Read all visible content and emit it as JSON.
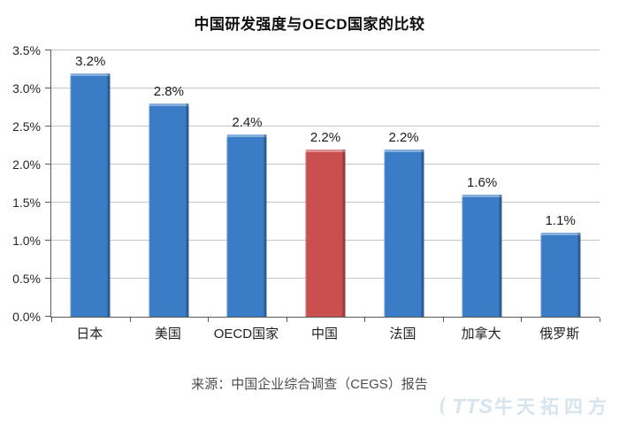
{
  "chart_data": {
    "type": "bar",
    "title": "中国研发强度与OECD国家的比较",
    "categories": [
      "日本",
      "美国",
      "OECD国家",
      "中国",
      "法国",
      "加拿大",
      "俄罗斯"
    ],
    "values": [
      3.2,
      2.8,
      2.4,
      2.2,
      2.2,
      1.6,
      1.1
    ],
    "value_labels": [
      "3.2%",
      "2.8%",
      "2.4%",
      "2.2%",
      "2.2%",
      "1.6%",
      "1.1%"
    ],
    "highlight_index": 3,
    "xlabel": "",
    "ylabel": "",
    "ylim": [
      0,
      3.5
    ],
    "yticks": [
      {
        "label": "0.0%",
        "value": 0.0
      },
      {
        "label": "0.5%",
        "value": 0.5
      },
      {
        "label": "1.0%",
        "value": 1.0
      },
      {
        "label": "1.5%",
        "value": 1.5
      },
      {
        "label": "2.0%",
        "value": 2.0
      },
      {
        "label": "2.5%",
        "value": 2.5
      },
      {
        "label": "3.0%",
        "value": 3.0
      },
      {
        "label": "3.5%",
        "value": 3.5
      }
    ],
    "grid": true,
    "legend": "none",
    "colors": {
      "bar": "#3a7cc6",
      "highlight": "#c9504e",
      "gridline": "#c6c6c6",
      "axis": "#595959"
    }
  },
  "source_note": "来源：中国企业综合调查（CEGS）报告",
  "watermark": {
    "logo": "TTS",
    "mark": "牛",
    "name": "天拓四方",
    "color": "#d7e3ed"
  }
}
